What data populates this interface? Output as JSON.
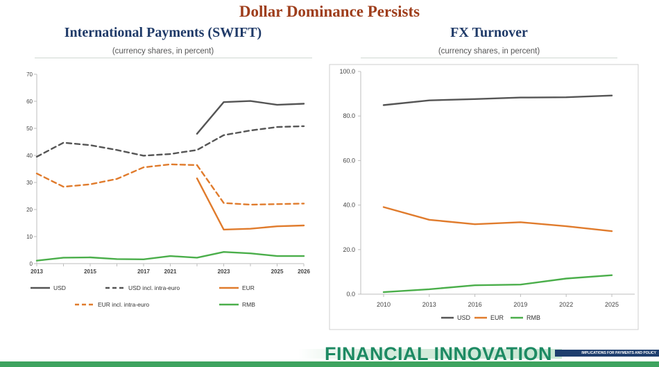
{
  "header": {
    "title": "Dollar Dominance Persists"
  },
  "colors": {
    "title": "#9e3d1b",
    "chart_title": "#1f3a68",
    "usd": "#555555",
    "eur": "#e07b2c",
    "rmb": "#4aae4a",
    "brand_text": "#1d8a63",
    "brand_dark": "#1e3e6e",
    "stripe": "#3ea35f"
  },
  "footer": {
    "brand": "FINANCIAL INNOVATION",
    "tagline": "IMPLICATIONS FOR PAYMENTS AND POLICY"
  },
  "chart_data": [
    {
      "type": "line",
      "title": "International Payments (SWIFT)",
      "subtitle": "(currency shares, in percent)",
      "x": [
        2013,
        2014,
        2015,
        2016,
        2017,
        2021,
        2022,
        2023,
        2024,
        2025,
        2026
      ],
      "x_tick_labels": [
        "2013",
        "2015",
        "2017",
        "2021",
        "2023",
        "2025",
        "2026"
      ],
      "ylim": [
        0,
        70
      ],
      "y_ticks": [
        0,
        10,
        20,
        30,
        40,
        50,
        60,
        70
      ],
      "grid": false,
      "legend_position": "bottom",
      "series": [
        {
          "name": "USD",
          "color_key": "usd",
          "dash": false,
          "values": [
            null,
            null,
            null,
            null,
            null,
            null,
            48,
            59.7,
            60.1,
            58.7,
            59.1
          ]
        },
        {
          "name": "USD incl. intra-euro",
          "color_key": "usd",
          "dash": true,
          "values": [
            39.5,
            44.7,
            43.8,
            42,
            39.9,
            40.5,
            42,
            47.5,
            49.2,
            50.5,
            50.8
          ]
        },
        {
          "name": "EUR",
          "color_key": "eur",
          "dash": false,
          "values": [
            null,
            null,
            null,
            null,
            null,
            null,
            31.5,
            12.6,
            12.9,
            13.8,
            14.1
          ]
        },
        {
          "name": "EUR incl. intra-euro",
          "color_key": "eur",
          "dash": true,
          "values": [
            33.3,
            28.4,
            29.3,
            31.3,
            35.6,
            36.7,
            36.4,
            22.4,
            21.8,
            22,
            22.2
          ]
        },
        {
          "name": "RMB",
          "color_key": "rmb",
          "dash": false,
          "values": [
            1.1,
            2.2,
            2.3,
            1.7,
            1.6,
            2.8,
            2.2,
            4.3,
            3.8,
            2.8,
            2.8
          ]
        }
      ]
    },
    {
      "type": "line",
      "title": "FX Turnover",
      "subtitle": "(currency shares, in percent)",
      "x": [
        2010,
        2013,
        2016,
        2019,
        2022,
        2025
      ],
      "x_tick_labels": [
        "2010",
        "2013",
        "2016",
        "2019",
        "2022",
        "2025"
      ],
      "ylim": [
        0,
        100
      ],
      "y_ticks": [
        0,
        20,
        40,
        60,
        80,
        100
      ],
      "y_tick_labels": [
        "0.0",
        "20.0",
        "40.0",
        "60.0",
        "80.0",
        "100.0"
      ],
      "grid": false,
      "legend_position": "bottom",
      "series": [
        {
          "name": "USD",
          "color_key": "usd",
          "dash": false,
          "values": [
            84.9,
            87,
            87.6,
            88.3,
            88.4,
            89.2
          ]
        },
        {
          "name": "EUR",
          "color_key": "eur",
          "dash": false,
          "values": [
            39.1,
            33.4,
            31.4,
            32.3,
            30.5,
            28.3
          ]
        },
        {
          "name": "RMB",
          "color_key": "rmb",
          "dash": false,
          "values": [
            0.9,
            2.2,
            4,
            4.3,
            7,
            8.5
          ]
        }
      ]
    }
  ]
}
